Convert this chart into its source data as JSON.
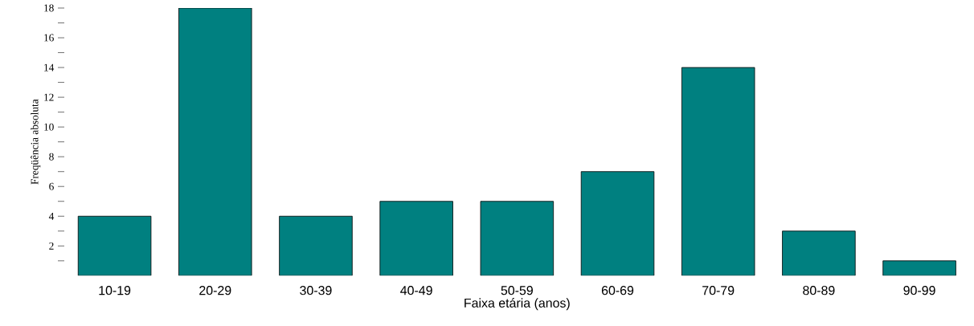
{
  "chart_data": {
    "type": "bar",
    "xlabel": "Faixa etária (anos)",
    "ylabel": "Freqüência absoluta",
    "categories": [
      "10-19",
      "20-29",
      "30-39",
      "40-49",
      "50-59",
      "60-69",
      "70-79",
      "80-89",
      "90-99"
    ],
    "values": [
      4,
      18,
      4,
      5,
      5,
      7,
      14,
      3,
      1
    ],
    "color": "#008080",
    "ylim": [
      0,
      18
    ],
    "yticks": [
      {
        "value": 1,
        "label": null
      },
      2,
      {
        "value": 3,
        "label": null
      },
      4,
      {
        "value": 5,
        "label": null
      },
      6,
      {
        "value": 7,
        "label": null
      },
      8,
      {
        "value": 9,
        "label": null
      },
      10,
      {
        "value": 11,
        "label": null
      },
      12,
      {
        "value": 13,
        "label": null
      },
      14,
      {
        "value": 15,
        "label": null
      },
      16,
      {
        "value": 17,
        "label": null
      },
      18
    ]
  }
}
